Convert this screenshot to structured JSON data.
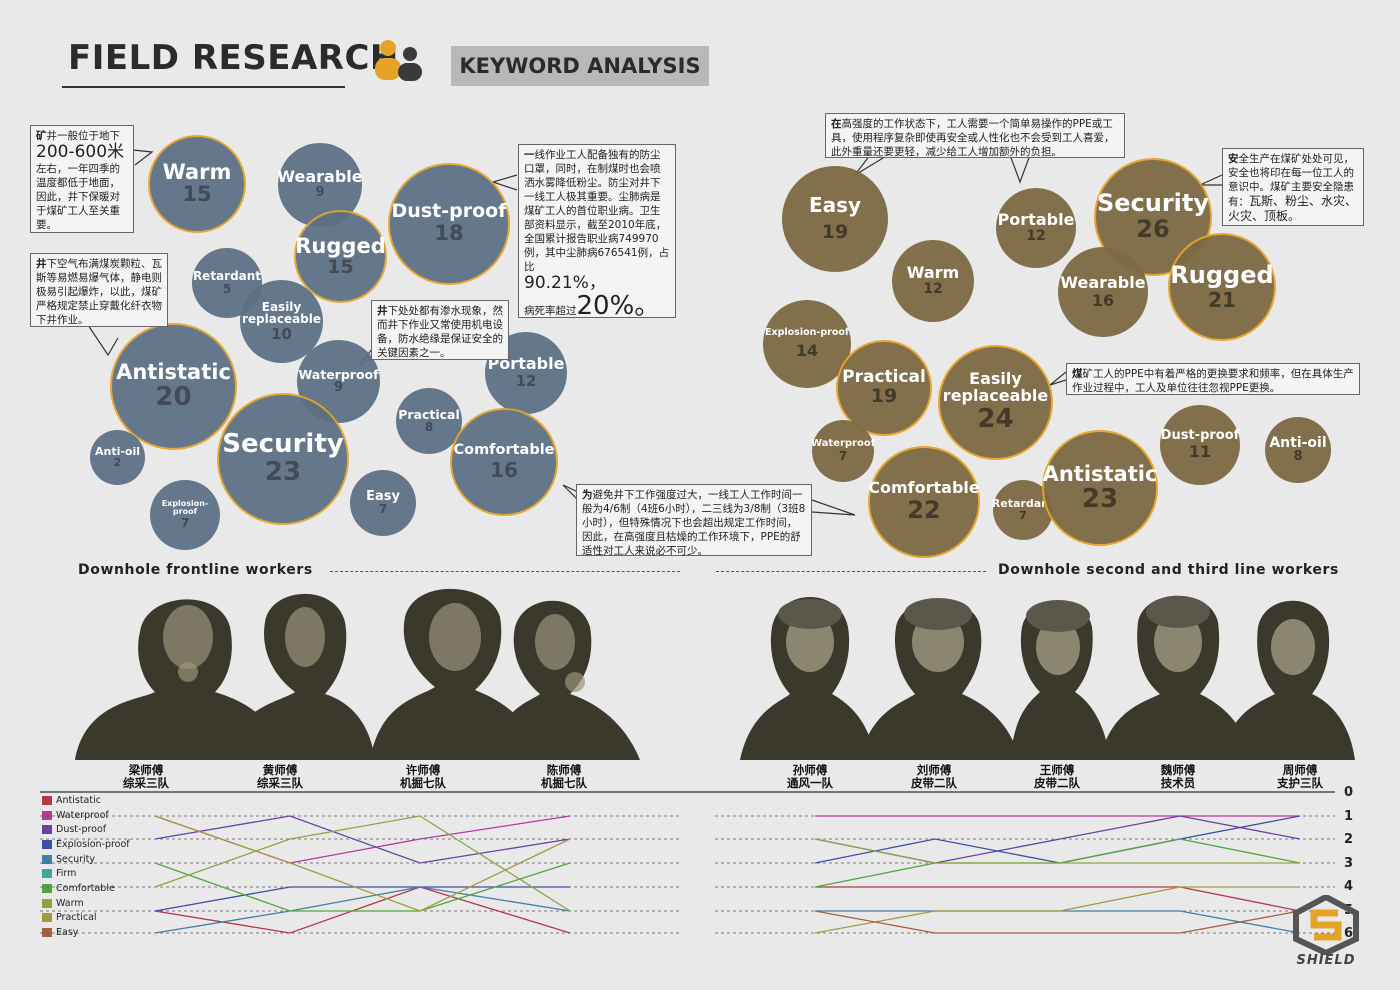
{
  "header": {
    "title": "FIELD RESEARCH",
    "subtitle": "KEYWORD ANALYSIS"
  },
  "left_bubbles": [
    {
      "label": "Warm",
      "num": "15"
    },
    {
      "label": "Wearable",
      "num": "9"
    },
    {
      "label": "Dust-proof",
      "num": "18"
    },
    {
      "label": "Rugged",
      "num": "15"
    },
    {
      "label": "Retardant",
      "num": "5"
    },
    {
      "label": "Easily replaceable",
      "num": "10"
    },
    {
      "label": "Antistatic",
      "num": "20"
    },
    {
      "label": "Waterproof",
      "num": "9"
    },
    {
      "label": "Portable",
      "num": "12"
    },
    {
      "label": "Practical",
      "num": "8"
    },
    {
      "label": "Security",
      "num": "23"
    },
    {
      "label": "Comfortable",
      "num": "16"
    },
    {
      "label": "Anti-oil",
      "num": "2"
    },
    {
      "label": "Easy",
      "num": "7"
    },
    {
      "label": "Explosion-proof",
      "num": "7"
    }
  ],
  "right_bubbles": [
    {
      "label": "Easy",
      "num": "19"
    },
    {
      "label": "Portable",
      "num": "12"
    },
    {
      "label": "Security",
      "num": "26"
    },
    {
      "label": "Warm",
      "num": "12"
    },
    {
      "label": "Wearable",
      "num": "16"
    },
    {
      "label": "Rugged",
      "num": "21"
    },
    {
      "label": "Explosion-proof",
      "num": "14"
    },
    {
      "label": "Practical",
      "num": "19"
    },
    {
      "label": "Easily replaceable",
      "num": "24"
    },
    {
      "label": "Waterproof",
      "num": "7"
    },
    {
      "label": "Dust-proof",
      "num": "11"
    },
    {
      "label": "Anti-oil",
      "num": "8"
    },
    {
      "label": "Comfortable",
      "num": "22"
    },
    {
      "label": "Retardant",
      "num": "7"
    },
    {
      "label": "Antistatic",
      "num": "23"
    }
  ],
  "notes": {
    "n1_lead": "矿",
    "n1_a": "井一般位于地下",
    "n1_big": "200-600米",
    "n1_b": "左右，一年四季的温度都低于地面，因此，井下保暖对于煤矿工人至关重要。",
    "n2_lead": "井",
    "n2_text": "下空气布满煤炭颗粒、瓦斯等易燃易爆气体，静电则极易引起爆炸，以此，煤矿严格规定禁止穿戴化纤衣物下井作业。",
    "n3_lead": "一",
    "n3_text": "线作业工人配备独有的防尘口罩，同时，在制煤时也会喷洒水雾降低粉尘。防尘对井下一线工人极其重要。尘肺病是煤矿工人的首位职业病。卫生部资料显示，截至2010年底，全国累计报告职业病749970例，其中尘肺病676541例，占比",
    "n3_big1": "90.21%，",
    "n3_b": "病死率超过",
    "n3_big2": "20%。",
    "n4_lead": "井",
    "n4_text": "下处处都有渗水现象，然而井下作业又常使用机电设备，防水绝缘是保证安全的关键因素之一。",
    "n5_lead": "为",
    "n5_text": "避免井下工作强度过大，一线工人工作时间一般为4/6制（4班6小时），二三线为3/8制（3班8小时），但特殊情况下也会超出规定工作时间，因此，在高强度且枯燥的工作环境下，PPE的舒适性对工人来说必不可少。",
    "n6_lead": "在",
    "n6_text": "高强度的工作状态下，工人需要一个简单易操作的PPE或工具，使用程序复杂即使再安全或人性化也不会受到工人喜爱，此外重量还要更轻，减少给工人增加额外的负担。",
    "n7_lead": "安",
    "n7_text": "全生产在煤矿处处可见，安全也将印在每一位工人的意识中。煤矿主要安全隐患有：",
    "n7_big": "瓦斯、粉尘、水灾、火灾、顶板。",
    "n8_lead": "煤",
    "n8_text": "矿工人的PPE中有着严格的更换要求和频率，但在具体生产作业过程中，工人及单位往往忽视PPE更换。"
  },
  "sections": {
    "left_title": "Downhole frontline workers",
    "right_title": "Downhole second and third line workers"
  },
  "left_workers": [
    {
      "name": "梁师傅",
      "team": "综采三队"
    },
    {
      "name": "黄师傅",
      "team": "综采三队"
    },
    {
      "name": "许师傅",
      "team": "机掘七队"
    },
    {
      "name": "陈师傅",
      "team": "机掘七队"
    }
  ],
  "right_workers": [
    {
      "name": "孙师傅",
      "team": "通风一队"
    },
    {
      "name": "刘师傅",
      "team": "皮带二队"
    },
    {
      "name": "王师傅",
      "team": "皮带二队"
    },
    {
      "name": "魏师傅",
      "team": "技术员"
    },
    {
      "name": "周师傅",
      "team": "支护三队"
    }
  ],
  "legend": [
    {
      "label": "Antistatic",
      "color": "#b5384a"
    },
    {
      "label": "Waterproof",
      "color": "#b53a9a"
    },
    {
      "label": "Dust-proof",
      "color": "#6a3fa6"
    },
    {
      "label": "Explosion-proof",
      "color": "#3f4fa6"
    },
    {
      "label": "Security",
      "color": "#3f80a6"
    },
    {
      "label": "Firm",
      "color": "#3fa69a"
    },
    {
      "label": "Comfortable",
      "color": "#4fa640"
    },
    {
      "label": "Warm",
      "color": "#8aa640"
    },
    {
      "label": "Practical",
      "color": "#a69a40"
    },
    {
      "label": "Easy",
      "color": "#a66040"
    }
  ],
  "ranks": [
    "0",
    "1",
    "2",
    "3",
    "4",
    "5",
    "6"
  ],
  "logo": {
    "text": "SHIELD"
  }
}
